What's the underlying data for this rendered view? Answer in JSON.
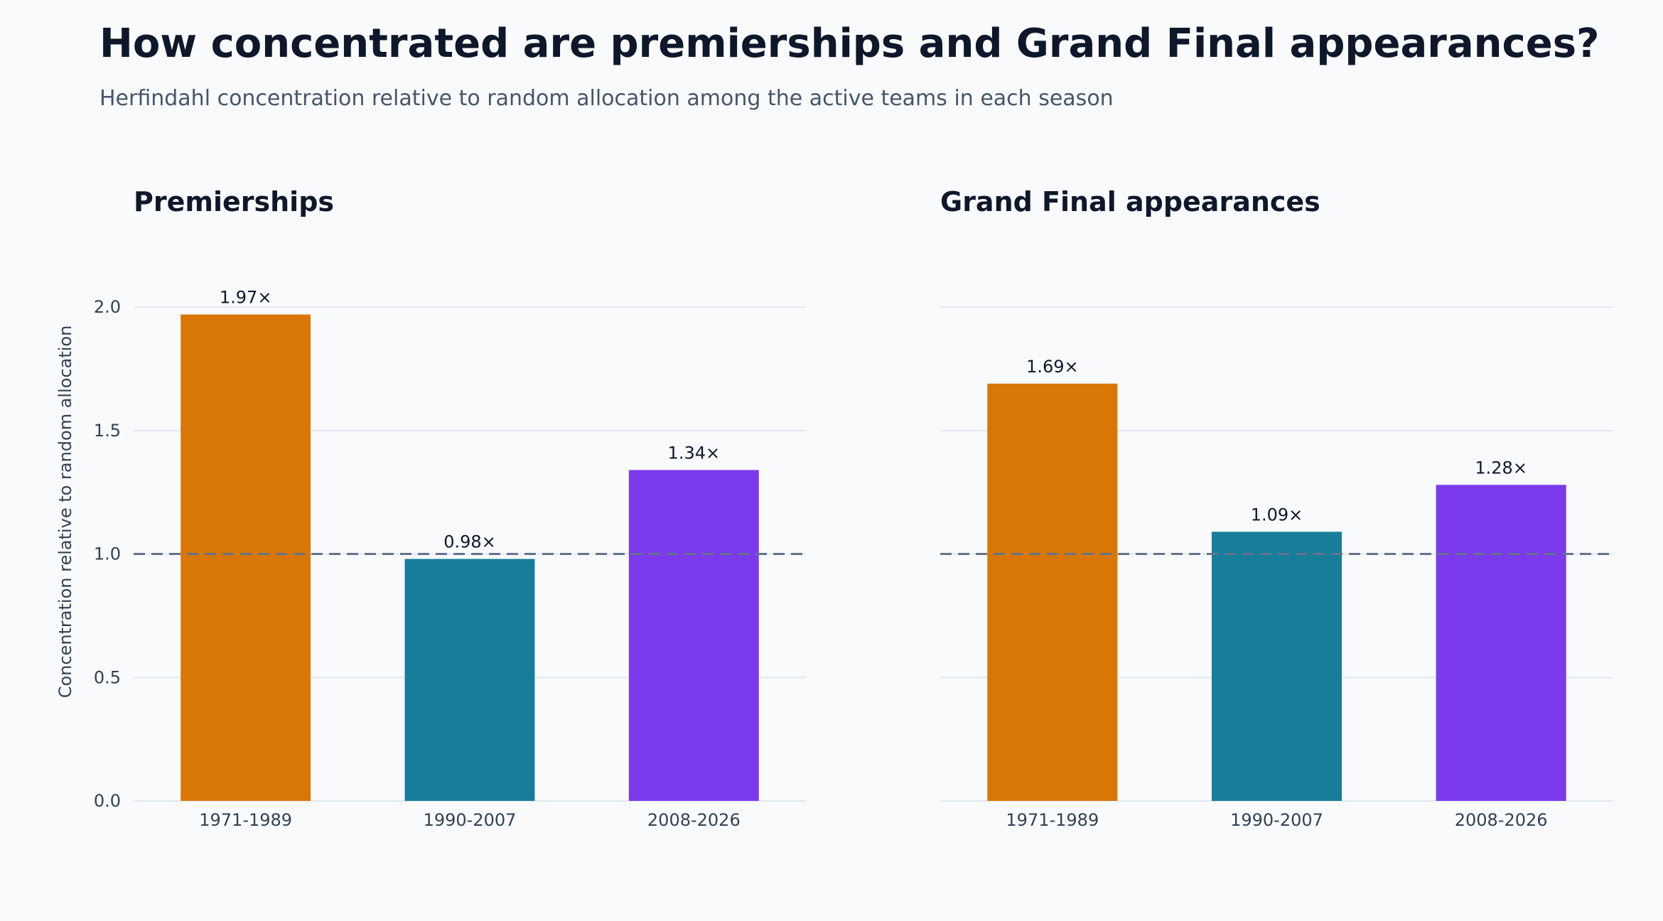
{
  "title": "How concentrated are premierships and Grand Final appearances?",
  "subtitle": "Herfindahl concentration relative to random allocation among the active teams in each season",
  "chart_data": [
    {
      "type": "bar",
      "title": "Premierships",
      "categories": [
        "1971-1989",
        "1990-2007",
        "2008-2026"
      ],
      "values": [
        1.97,
        0.98,
        1.34
      ],
      "data_labels": [
        "1.97×",
        "0.98×",
        "1.34×"
      ],
      "colors": [
        "#d97706",
        "#177e9a",
        "#7c3aed"
      ],
      "ylabel": "Concentration relative to random allocation",
      "ylim": [
        0,
        2.15
      ],
      "yticks": [
        0.0,
        0.5,
        1.0,
        1.5,
        2.0
      ],
      "ytick_labels": [
        "0.0",
        "0.5",
        "1.0",
        "1.5",
        "2.0"
      ],
      "reference_line": 1.0,
      "grid": true
    },
    {
      "type": "bar",
      "title": "Grand Final appearances",
      "categories": [
        "1971-1989",
        "1990-2007",
        "2008-2026"
      ],
      "values": [
        1.69,
        1.09,
        1.28
      ],
      "data_labels": [
        "1.69×",
        "1.09×",
        "1.28×"
      ],
      "colors": [
        "#d97706",
        "#177e9a",
        "#7c3aed"
      ],
      "ylabel": "",
      "ylim": [
        0,
        2.15
      ],
      "yticks": [
        0.0,
        0.5,
        1.0,
        1.5,
        2.0
      ],
      "ytick_labels": [],
      "reference_line": 1.0,
      "grid": true
    }
  ]
}
